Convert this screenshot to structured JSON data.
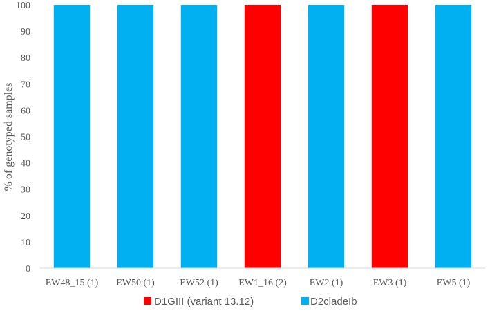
{
  "chart_data": {
    "type": "bar",
    "stacked": true,
    "categories": [
      "EW48_15 (1)",
      "EW50 (1)",
      "EW52 (1)",
      "EW1_16 (2)",
      "EW2 (1)",
      "EW3 (1)",
      "EW5 (1)"
    ],
    "series": [
      {
        "name": "D1GIII (variant 13.12)",
        "color": "#ff0000",
        "values": [
          0,
          0,
          0,
          100,
          0,
          100,
          0
        ]
      },
      {
        "name": "D2cladeIb",
        "color": "#00b0f0",
        "values": [
          100,
          100,
          100,
          0,
          100,
          0,
          100
        ]
      }
    ],
    "title": "",
    "xlabel": "",
    "ylabel": "% of genotyped samples",
    "ylim": [
      0,
      100
    ],
    "yticks": [
      0,
      10,
      20,
      30,
      40,
      50,
      60,
      70,
      80,
      90,
      100
    ],
    "grid": false,
    "legend_position": "bottom"
  }
}
